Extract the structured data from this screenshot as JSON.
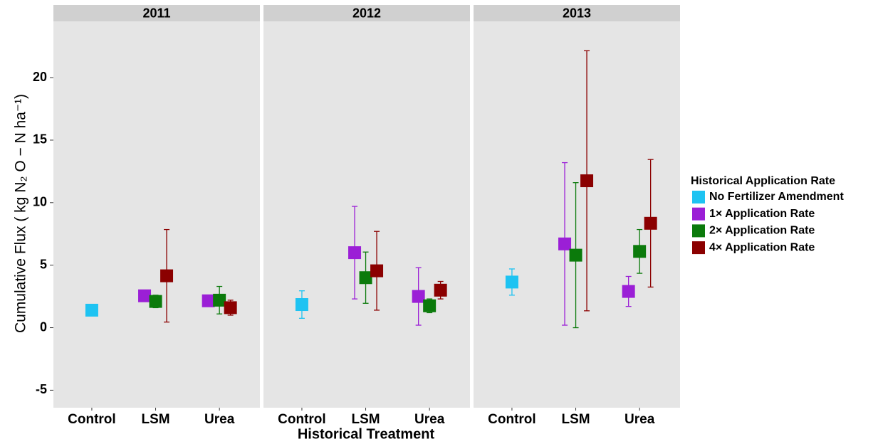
{
  "chart_data": {
    "type": "dot",
    "y_label": "Cumulative Flux ( kg N₂ O − N ha⁻¹)",
    "x_label": "Historical Treatment",
    "legend_title": "Historical Application Rate",
    "facets": [
      "2011",
      "2012",
      "2013"
    ],
    "categories": [
      "Control",
      "LSM",
      "Urea"
    ],
    "ylim": [
      -6.4,
      24.5
    ],
    "yticks": [
      -5,
      0,
      5,
      10,
      15,
      20
    ],
    "series": [
      {
        "name": "No Fertilizer Amendment",
        "color": "#1ec3f2",
        "values": [
          [
            1.4,
            null,
            null
          ],
          [
            1.85,
            null,
            null
          ],
          [
            3.65,
            null,
            null
          ]
        ],
        "errors": [
          [
            0.2,
            null,
            null
          ],
          [
            1.1,
            null,
            null
          ],
          [
            1.05,
            null,
            null
          ]
        ]
      },
      {
        "name": "1× Application Rate",
        "color": "#9b1fd6",
        "values": [
          [
            null,
            2.55,
            2.15
          ],
          [
            null,
            6.0,
            2.5
          ],
          [
            null,
            6.7,
            2.9
          ]
        ],
        "errors": [
          [
            null,
            0.1,
            0.1
          ],
          [
            null,
            3.7,
            2.3
          ],
          [
            null,
            6.5,
            1.2
          ]
        ]
      },
      {
        "name": "2× Application Rate",
        "color": "#0b7a0b",
        "values": [
          [
            null,
            2.1,
            2.2
          ],
          [
            null,
            4.0,
            1.75
          ],
          [
            null,
            5.8,
            6.1
          ]
        ],
        "errors": [
          [
            null,
            0.5,
            1.1
          ],
          [
            null,
            2.05,
            0.55
          ],
          [
            null,
            5.8,
            1.75
          ]
        ]
      },
      {
        "name": "4× Application Rate",
        "color": "#8b0000",
        "values": [
          [
            null,
            4.15,
            1.6
          ],
          [
            null,
            4.55,
            3.0
          ],
          [
            null,
            11.75,
            8.35
          ]
        ],
        "errors": [
          [
            null,
            3.7,
            0.6
          ],
          [
            null,
            3.15,
            0.7
          ],
          [
            null,
            10.4,
            5.1
          ]
        ]
      }
    ]
  }
}
